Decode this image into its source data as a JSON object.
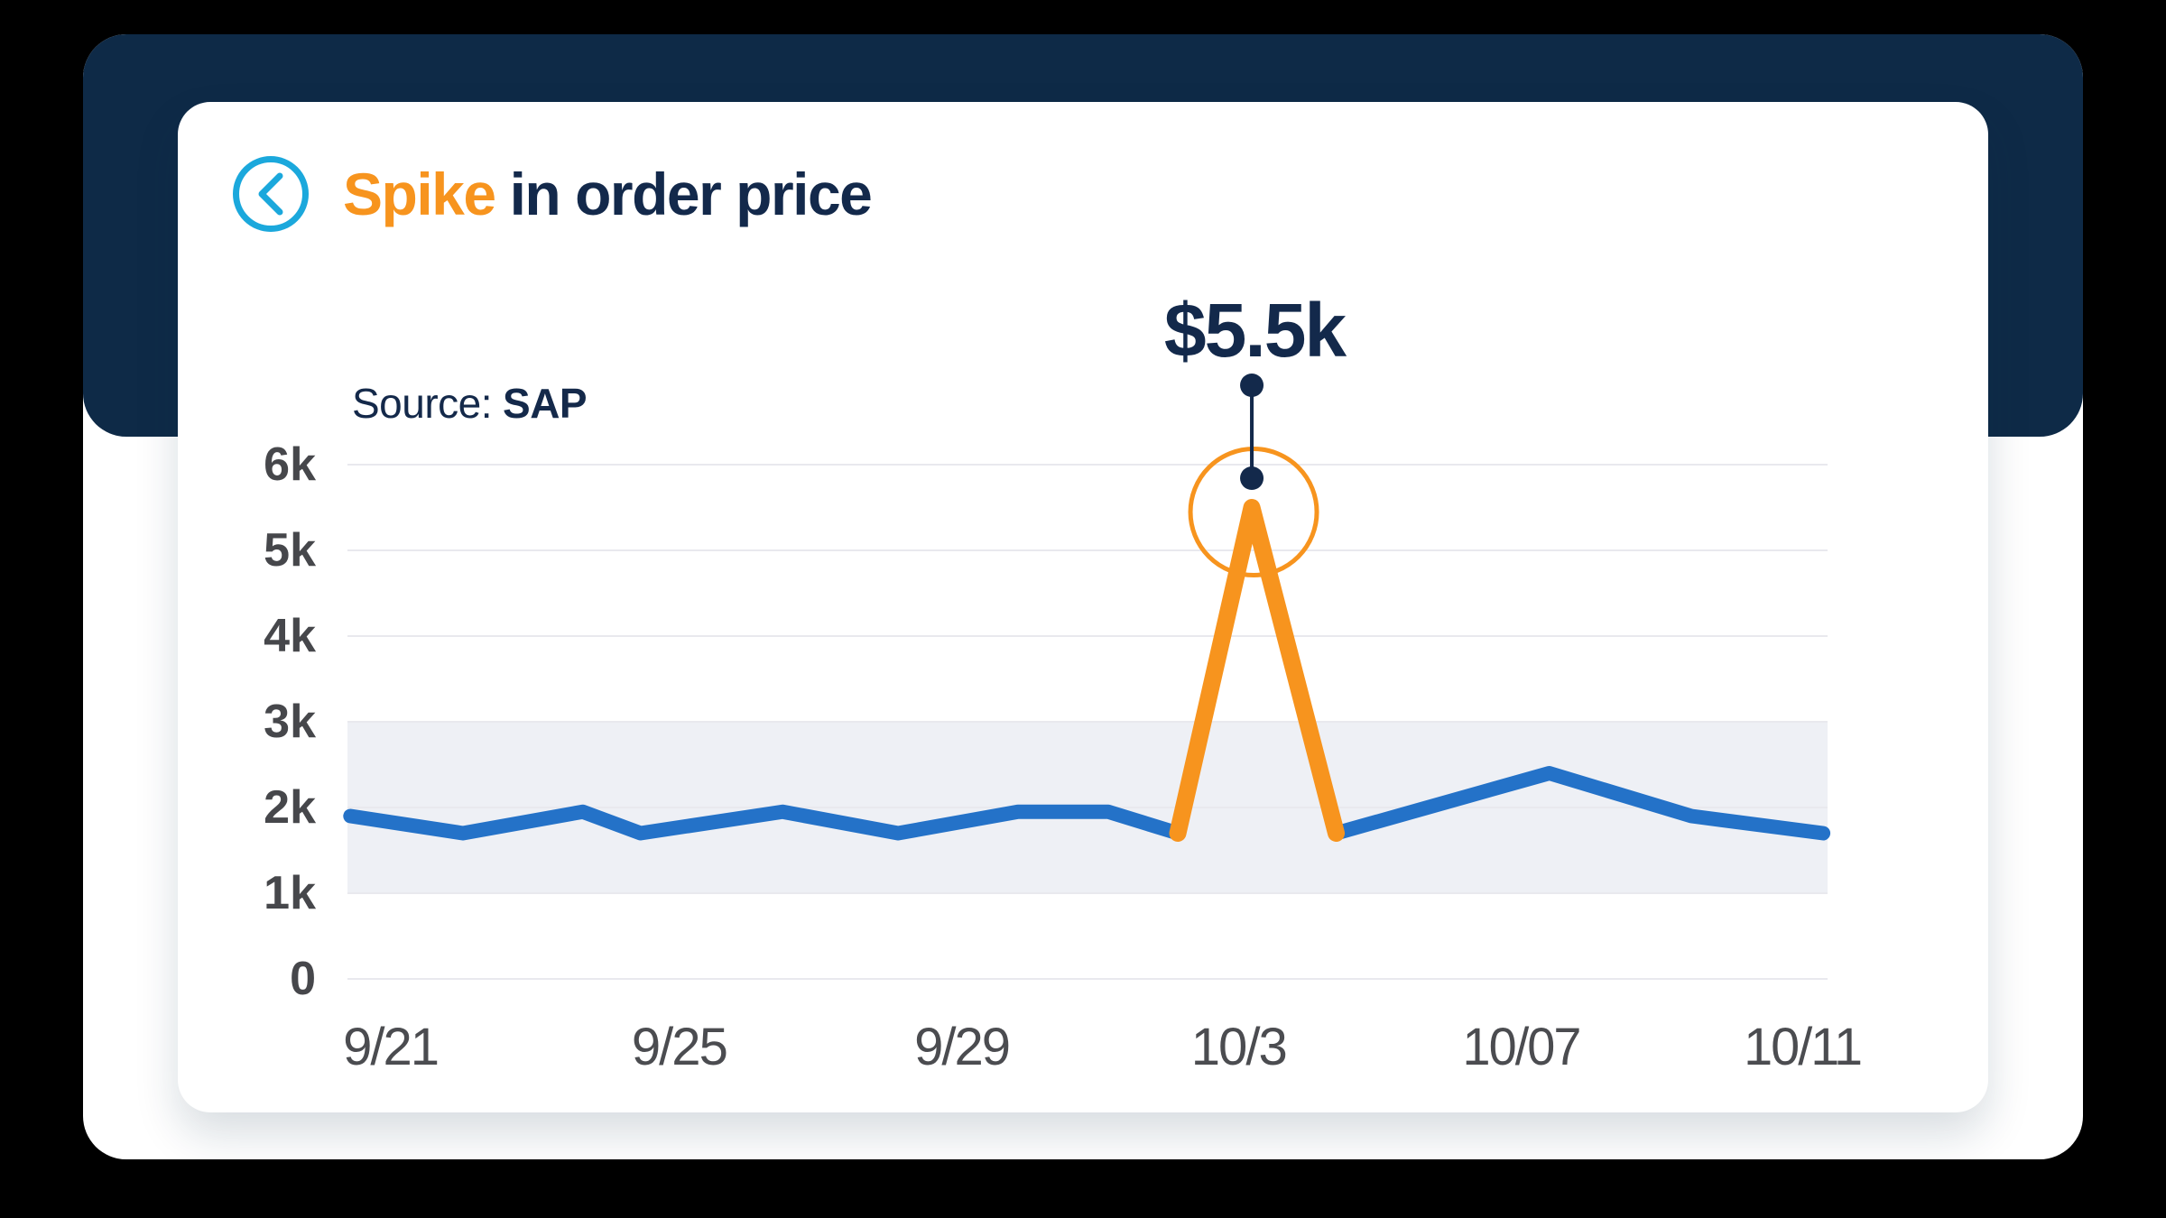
{
  "page": {
    "background": "#000000"
  },
  "panel": {
    "navy_color": "#0e2a47",
    "outer_color": "#ffffff",
    "card_color": "#ffffff"
  },
  "header": {
    "back_button": "chevron-left-icon",
    "title_accent": "Spike",
    "title_rest": "in order price",
    "accent_color": "#f7941e",
    "title_color": "#13294b",
    "back_ring_color": "#1ba8dc"
  },
  "source": {
    "prefix": "Source:",
    "value": "SAP"
  },
  "chart_data": {
    "type": "line",
    "title": "Spike in order price",
    "source": "SAP",
    "ylabel": "",
    "xlabel": "",
    "y_axis": {
      "min": 0,
      "max": 6000,
      "step": 1000
    },
    "y_ticks": [
      "6k",
      "5k",
      "4k",
      "3k",
      "2k",
      "1k",
      "0"
    ],
    "x_ticks": [
      {
        "label": "9/21",
        "x": 0.029
      },
      {
        "label": "9/25",
        "x": 0.224
      },
      {
        "label": "9/29",
        "x": 0.415
      },
      {
        "label": "10/3",
        "x": 0.602
      },
      {
        "label": "10/07",
        "x": 0.793
      },
      {
        "label": "10/11",
        "x": 0.983
      }
    ],
    "band": {
      "from": 1000,
      "to": 3000,
      "color": "#eef0f5"
    },
    "grid": true,
    "legend": "none",
    "series": [
      {
        "name": "order price ($)",
        "points": [
          {
            "x": 0.002,
            "v": 1900
          },
          {
            "x": 0.078,
            "v": 1700
          },
          {
            "x": 0.159,
            "v": 1950
          },
          {
            "x": 0.198,
            "v": 1700
          },
          {
            "x": 0.294,
            "v": 1950
          },
          {
            "x": 0.372,
            "v": 1700
          },
          {
            "x": 0.453,
            "v": 1950
          },
          {
            "x": 0.514,
            "v": 1950
          },
          {
            "x": 0.561,
            "v": 1700
          },
          {
            "x": 0.611,
            "v": 5500
          },
          {
            "x": 0.668,
            "v": 1700
          },
          {
            "x": 0.812,
            "v": 2400
          },
          {
            "x": 0.908,
            "v": 1900
          },
          {
            "x": 0.997,
            "v": 1700
          }
        ]
      }
    ],
    "spike": {
      "start_index": 8,
      "peak_index": 9,
      "end_index": 10,
      "peak_value": 5500
    },
    "annotation": {
      "label": "$5.5k",
      "value": 5500
    },
    "colors": {
      "line": "#2472c8",
      "spike": "#f7941e",
      "spike_ring": "#f7941e",
      "annotation": "#13294b",
      "gridline": "#e9e9ee",
      "y_axis_text": "#46474b",
      "x_axis_text": "#4b4c50"
    }
  }
}
